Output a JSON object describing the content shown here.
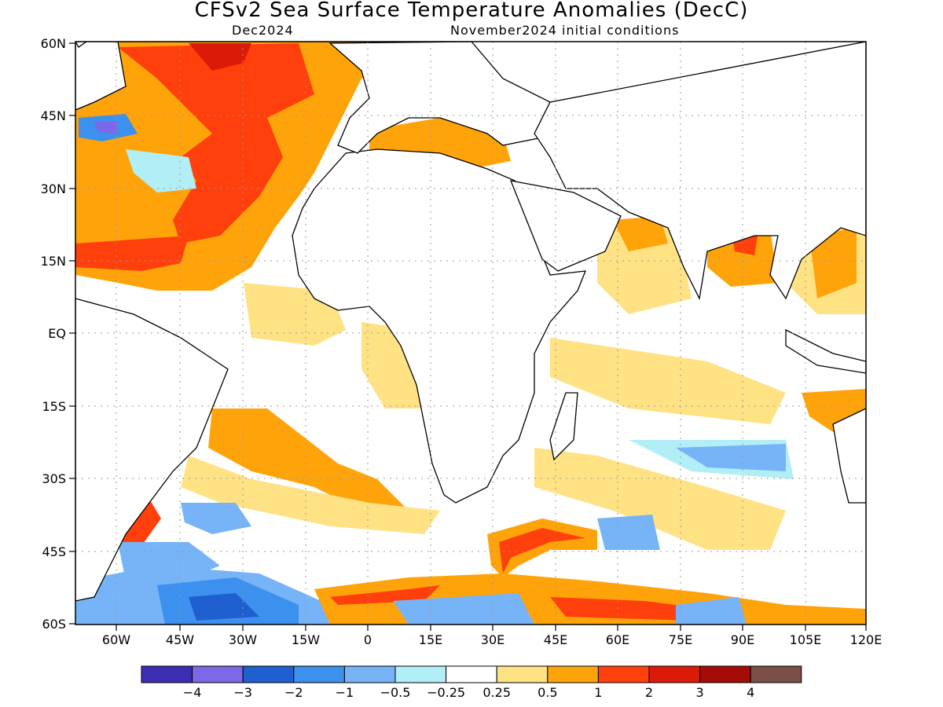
{
  "title": "CFSv2 Sea Surface Temperature Anomalies (DecC)",
  "valid_month": "Dec2024",
  "initial_conditions": "November2024 initial conditions",
  "lat_ticks": [
    "60N",
    "45N",
    "30N",
    "15N",
    "EQ",
    "15S",
    "30S",
    "45S",
    "60S"
  ],
  "lon_ticks": [
    "60W",
    "45W",
    "30W",
    "15W",
    "0",
    "15E",
    "30E",
    "45E",
    "60E",
    "75E",
    "90E",
    "105E",
    "120E"
  ],
  "colorbar": {
    "colors": [
      "#3d2db3",
      "#7d68e8",
      "#1f5fcf",
      "#3c90ee",
      "#76b4f7",
      "#b1eef6",
      "#ffffff",
      "#ffe284",
      "#ffa30a",
      "#ff3f0c",
      "#dc1a08",
      "#a50b07",
      "#7a4f45"
    ],
    "labels": [
      "−4",
      "−3",
      "−2",
      "−1",
      "−0.5",
      "−0.25",
      "0.25",
      "0.5",
      "1",
      "2",
      "3",
      "4"
    ]
  }
}
